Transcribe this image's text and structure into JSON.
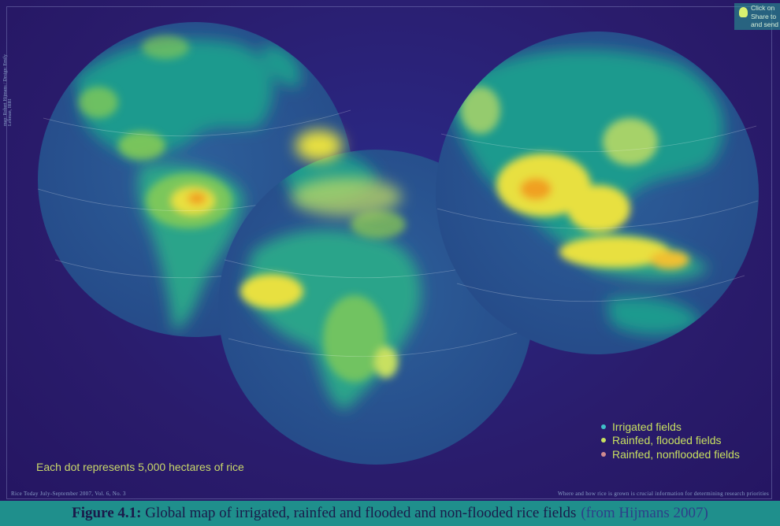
{
  "map": {
    "dot_note": "Each dot represents 5,000 hectares of rice",
    "legend": [
      {
        "label": "Irrigated fields",
        "color": "#3fc0c8"
      },
      {
        "label": "Rainfed, flooded fields",
        "color": "#c8e060"
      },
      {
        "label": "Rainfed, nonflooded fields",
        "color": "#d08a90"
      }
    ],
    "footer_left": "Rice Today July-September 2007, Vol. 6, No. 3",
    "footer_right": "Where and how rice is grown is crucial information for determining research priorities",
    "side_credit": "map: Robert Hijmans / Design: Emily Lehman, IRRI",
    "colors": {
      "ocean": "#2a1c6c",
      "land": "#1f9a8e",
      "hot": "#e8e040",
      "peak": "#f0a020"
    }
  },
  "tip": {
    "text": "Click on\nShare to\nand send"
  },
  "caption": {
    "label": "Figure 4.1:",
    "text": "Global map of irrigated, rainfed and flooded and non-flooded rice fields",
    "source": "(from Hijmans 2007)"
  }
}
